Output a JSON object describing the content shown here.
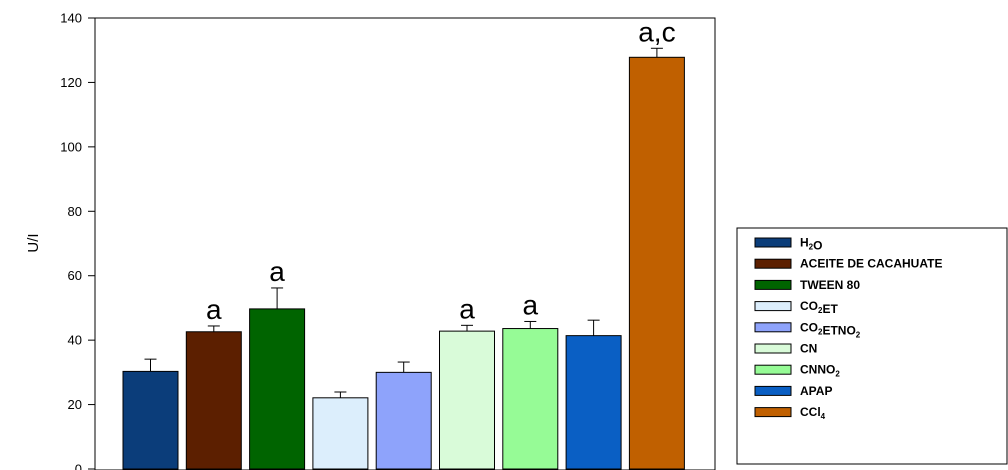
{
  "chart_data": {
    "type": "bar",
    "ylabel": "U/I",
    "ylim": [
      0,
      140
    ],
    "yticks": [
      "0",
      "20",
      "40",
      "60",
      "80",
      "100",
      "120",
      "140"
    ],
    "grid": false,
    "legend_position": "right",
    "series": [
      {
        "label": "H₂O",
        "value": 30.3,
        "error": 3.8,
        "annotation": "",
        "color": "#0b3d7a"
      },
      {
        "label": "ACEITE DE CACAHUATE",
        "value": 42.6,
        "error": 1.8,
        "annotation": "a",
        "color": "#5c1f00"
      },
      {
        "label": "TWEEN 80",
        "value": 49.7,
        "error": 6.5,
        "annotation": "a",
        "color": "#006400"
      },
      {
        "label": "CO₂ET",
        "value": 22.1,
        "error": 1.8,
        "annotation": "",
        "color": "#dceefc"
      },
      {
        "label": "CO₂ETNO₂",
        "value": 30.0,
        "error": 3.2,
        "annotation": "",
        "color": "#8ea3fb"
      },
      {
        "label": "CN",
        "value": 42.8,
        "error": 1.8,
        "annotation": "a",
        "color": "#d9fbd9"
      },
      {
        "label": "CNNO₂",
        "value": 43.6,
        "error": 2.2,
        "annotation": "a",
        "color": "#96fb96"
      },
      {
        "label": "APAP",
        "value": 41.4,
        "error": 4.8,
        "annotation": "",
        "color": "#0a5fc4"
      },
      {
        "label": "CCl₄",
        "value": 127.8,
        "error": 2.8,
        "annotation": "a,c",
        "color": "#c06000"
      }
    ]
  }
}
